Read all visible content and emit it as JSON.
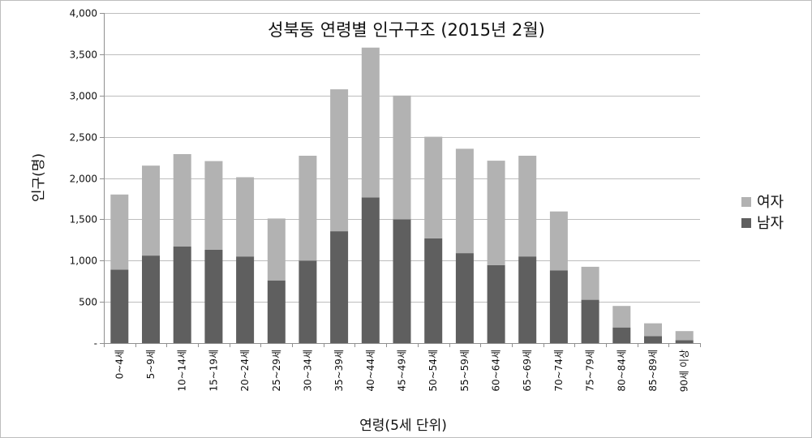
{
  "chart_data": {
    "type": "bar",
    "stacked": true,
    "title": "성북동 연령별 인구구조 (2015년 2월)",
    "xlabel": "연령(5세 단위)",
    "ylabel": "인구(명)",
    "ylim": [
      0,
      4000
    ],
    "yticks": [
      "-",
      "500",
      "1,000",
      "1,500",
      "2,000",
      "2,500",
      "3,000",
      "3,500",
      "4,000"
    ],
    "grid": true,
    "legend_position": "right",
    "categories": [
      "0~4세",
      "5~9세",
      "10~14세",
      "15~19세",
      "20~24세",
      "25~29세",
      "30~34세",
      "35~39세",
      "40~44세",
      "45~49세",
      "50~54세",
      "55~59세",
      "60~64세",
      "65~69세",
      "70~74세",
      "75~79세",
      "80~84세",
      "85~89세",
      "90세 이상"
    ],
    "series": [
      {
        "name": "남자",
        "color": "#5f5f5f",
        "values": [
          890,
          1060,
          1170,
          1130,
          1050,
          760,
          1000,
          1355,
          1765,
          1500,
          1270,
          1090,
          945,
          1050,
          880,
          525,
          190,
          85,
          35
        ]
      },
      {
        "name": "여자",
        "color": "#b2b2b2",
        "values": [
          910,
          1090,
          1120,
          1075,
          960,
          750,
          1270,
          1720,
          1815,
          1500,
          1230,
          1265,
          1265,
          1220,
          715,
          400,
          260,
          155,
          110
        ]
      }
    ],
    "legend_order": [
      "여자",
      "남자"
    ],
    "colors": {
      "grid": "#bdbdbd",
      "axis": "#909090",
      "text": "#111111"
    }
  }
}
